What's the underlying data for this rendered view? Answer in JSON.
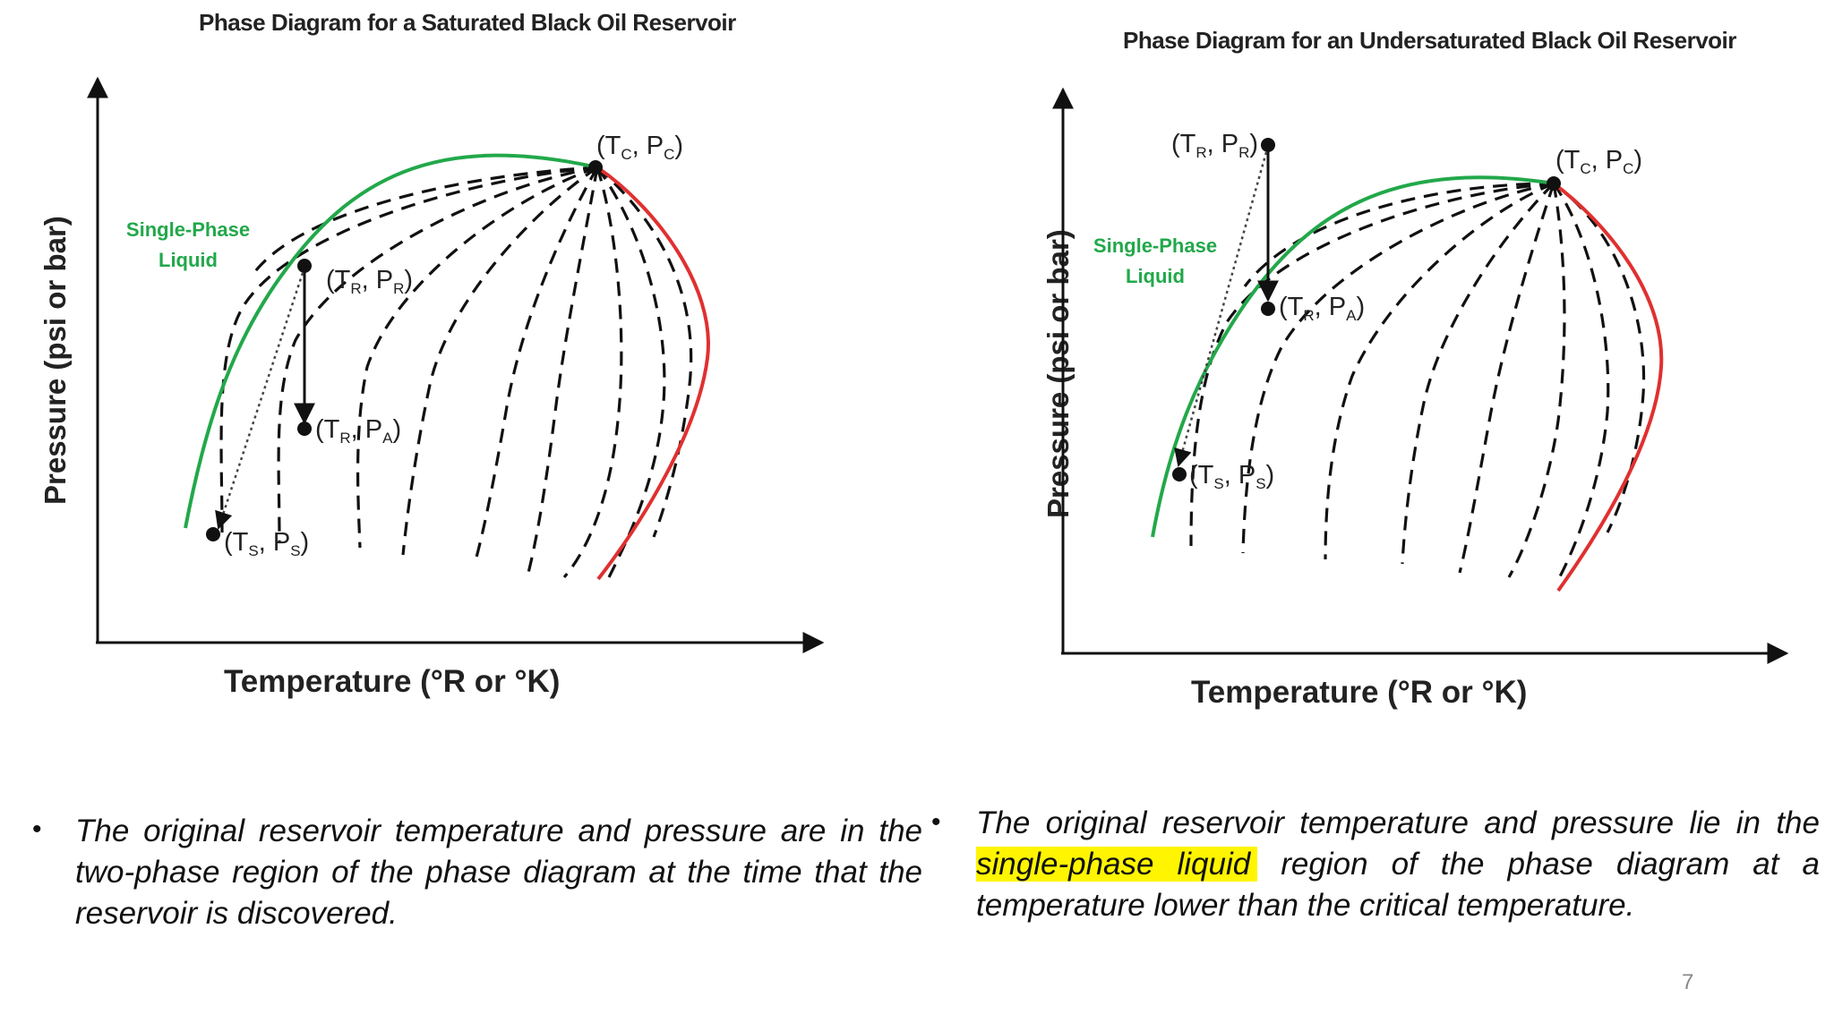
{
  "colors": {
    "bubble_curve": "#22a84a",
    "dew_curve": "#e03030",
    "quality_lines": "#111111",
    "highlight": "#fff500",
    "text": "#111111"
  },
  "diagrams": [
    {
      "title": "Phase Diagram for a Saturated Black Oil Reservoir",
      "y_axis_label": "Pressure (psi or bar)",
      "x_axis_label": "Temperature (°R or °K)",
      "region_label": [
        "Single-Phase",
        "Liquid"
      ],
      "points": {
        "critical": {
          "main": [
            "(T",
            ", P",
            ")"
          ],
          "subs": [
            "C",
            "C"
          ]
        },
        "reservoir": {
          "main": [
            "(T",
            ", P",
            ")"
          ],
          "subs": [
            "R",
            "R"
          ]
        },
        "abandonment": {
          "main": [
            "(T",
            ", P",
            ")"
          ],
          "subs": [
            "R",
            "A"
          ]
        },
        "saturation": {
          "main": [
            "(T",
            ", P",
            ")"
          ],
          "subs": [
            "S",
            "S"
          ]
        }
      }
    },
    {
      "title": "Phase Diagram for an Undersaturated Black Oil Reservoir",
      "y_axis_label": "Pressure (psi or bar)",
      "x_axis_label": "Temperature (°R or °K)",
      "region_label": [
        "Single-Phase",
        "Liquid"
      ],
      "points": {
        "critical": {
          "main": [
            "(T",
            ", P",
            ")"
          ],
          "subs": [
            "C",
            "C"
          ]
        },
        "reservoir": {
          "main": [
            "(T",
            ", P",
            ")"
          ],
          "subs": [
            "R",
            "R"
          ]
        },
        "abandonment": {
          "main": [
            "(T",
            ", P",
            ")"
          ],
          "subs": [
            "R",
            "A"
          ]
        },
        "saturation": {
          "main": [
            "(T",
            ", P",
            ")"
          ],
          "subs": [
            "S",
            "S"
          ]
        }
      }
    }
  ],
  "bullets": {
    "left": {
      "text": "The original reservoir temperature and pressure are in the two-phase region of the phase diagram at the time that the reservoir is discovered."
    },
    "right": {
      "before": "The original reservoir temperature and pressure lie in the ",
      "highlight": "single-phase liquid",
      "after": "region of the phase diagram at a temperature lower than the critical temperature."
    }
  },
  "page_number": "7"
}
